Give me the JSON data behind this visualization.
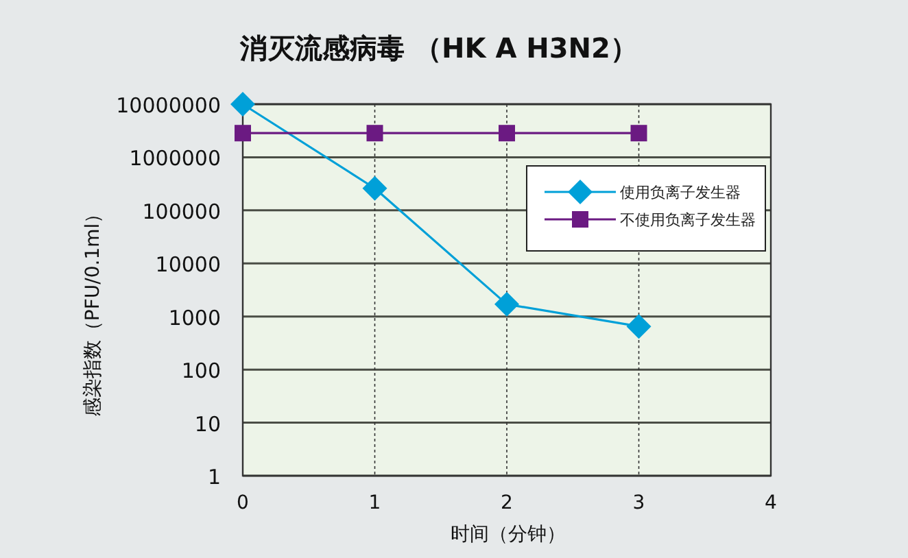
{
  "chart_data": {
    "type": "line",
    "title": "消灭流感病毒 （HK A H3N2）",
    "xlabel": "时间（分钟）",
    "ylabel": "感染指数（PFU/0.1ml）",
    "x": [
      0,
      1,
      2,
      3
    ],
    "series": [
      {
        "name": "使用负离子发生器",
        "color": "#00a0d8",
        "marker": "diamond",
        "values": [
          10000000,
          260000,
          1700,
          650
        ]
      },
      {
        "name": "不使用负离子发生器",
        "color": "#6b1a82",
        "marker": "square",
        "values": [
          2850000,
          2850000,
          2850000,
          2850000
        ]
      }
    ],
    "xlim": [
      0,
      4
    ],
    "xticks": [
      0,
      1,
      2,
      3,
      4
    ],
    "ylim": [
      1,
      10000000
    ],
    "yticks": [
      1,
      10,
      100,
      1000,
      10000,
      100000,
      1000000,
      10000000
    ],
    "log": true,
    "grid": true,
    "legend": "top right",
    "line_style": "solid"
  }
}
